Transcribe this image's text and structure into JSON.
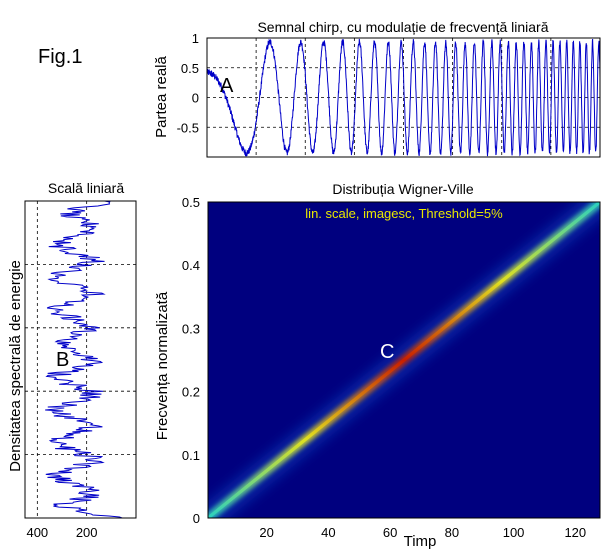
{
  "figure_label": "Fig.1",
  "colors": {
    "signal": "#0000c8",
    "plot_frame": "#000000",
    "wv_background": "#00007f",
    "wv_ridge_start": "#2ad0c0",
    "wv_ridge_mid": "#e0e020",
    "wv_ridge_end": "#c81e00",
    "annotation_text": "#e8e800"
  },
  "chart_data": [
    {
      "id": "signal",
      "type": "line",
      "title": "Semnal chirp, cu modulație de frecvență liniară",
      "xlabel": "",
      "ylabel": "Partea reală",
      "xlim": [
        0,
        128
      ],
      "ylim": [
        -1,
        1
      ],
      "yticks": [
        "1",
        "0.5",
        "0",
        "-0.5"
      ],
      "ytick_values": [
        1,
        0.5,
        0,
        -0.5
      ],
      "grid_x_values": [
        16,
        32,
        48,
        64,
        80,
        96,
        112
      ],
      "grid": true,
      "signal_model": "real part of a linear chirp, normalized frequency 0 to 0.5, with noise",
      "f_start": 0.0,
      "f_end": 0.5,
      "annotation": "A"
    },
    {
      "id": "spectrum",
      "type": "line",
      "title": "Scală liniară",
      "xlabel": "",
      "ylabel": "Densitatea spectrală de energie",
      "x_reversed": true,
      "xlim": [
        450,
        0
      ],
      "xticks": [
        "400",
        "200"
      ],
      "xtick_values": [
        400,
        200
      ],
      "ylim": [
        0,
        0.5
      ],
      "grid": true,
      "annotation": "B"
    },
    {
      "id": "wigner",
      "type": "heatmap",
      "title": "Distribuția Wigner-Ville",
      "subtitle": "lin. scale, imagesc, Threshold=5%",
      "xlabel": "Timp",
      "ylabel": "Frecvența normalizată",
      "xlim": [
        1,
        128
      ],
      "ylim": [
        0,
        0.5
      ],
      "xticks": [
        "20",
        "40",
        "60",
        "80",
        "100",
        "120"
      ],
      "xtick_values": [
        20,
        40,
        60,
        80,
        100,
        120
      ],
      "yticks": [
        "0",
        "0.1",
        "0.2",
        "0.3",
        "0.4",
        "0.5"
      ],
      "ytick_values": [
        0,
        0.1,
        0.2,
        0.3,
        0.4,
        0.5
      ],
      "ridge": {
        "t": [
          1,
          128
        ],
        "f": [
          0.0,
          0.5
        ]
      },
      "annotation": "C"
    }
  ]
}
